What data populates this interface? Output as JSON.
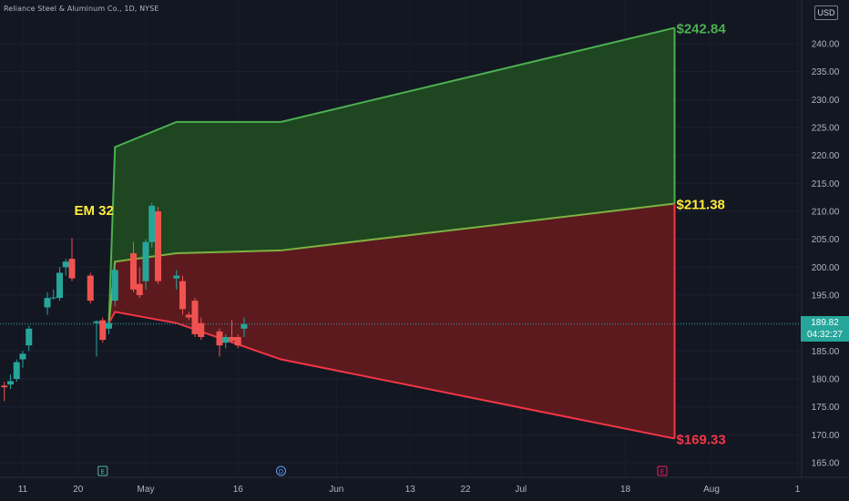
{
  "header": {
    "title": "Reliance Steel & Aluminum Co., 1D, NYSE"
  },
  "currency_badge": "USD",
  "last_price": {
    "value": "189.82",
    "countdown": "04:32:27"
  },
  "annotation_em": "EM 32",
  "colors": {
    "background": "#131722",
    "up": "#26a69a",
    "down": "#ef5350",
    "upper_band": "#4caf50",
    "mid_band": "#7cb342",
    "lower_band": "#f23645",
    "upper_fill": "#1e4620",
    "lower_fill": "#5c1a1f",
    "mid_label": "#ffeb3b"
  },
  "events": [
    {
      "name": "earnings-marker",
      "letter": "E",
      "date": "2024-04-24"
    },
    {
      "name": "dividend-marker",
      "letter": "D",
      "date": "2024-05-23"
    },
    {
      "name": "earnings-marker-future",
      "letter": "E",
      "date": "2024-07-24"
    }
  ],
  "chart_data": {
    "type": "candlestick",
    "ylim": [
      162,
      245
    ],
    "y_ticks": [
      165,
      170,
      175,
      180,
      185,
      190,
      195,
      200,
      205,
      210,
      215,
      220,
      225,
      230,
      235,
      240
    ],
    "x_ticks": [
      {
        "label": "11",
        "date": "2024-04-11"
      },
      {
        "label": "20",
        "date": "2024-04-20"
      },
      {
        "label": "May",
        "date": "2024-05-01"
      },
      {
        "label": "16",
        "date": "2024-05-16"
      },
      {
        "label": "Jun",
        "date": "2024-06-01"
      },
      {
        "label": "13",
        "date": "2024-06-13"
      },
      {
        "label": "22",
        "date": "2024-06-22"
      },
      {
        "label": "Jul",
        "date": "2024-07-01"
      },
      {
        "label": "18",
        "date": "2024-07-18"
      },
      {
        "label": "Aug",
        "date": "2024-08-01"
      },
      {
        "label": "1",
        "date": "2024-08-15"
      }
    ],
    "candles": [
      {
        "date": "2024-04-08",
        "o": 178.8,
        "h": 179.5,
        "l": 176.0,
        "c": 178.5
      },
      {
        "date": "2024-04-09",
        "o": 179.0,
        "h": 180.8,
        "l": 178.2,
        "c": 179.6
      },
      {
        "date": "2024-04-10",
        "o": 180.0,
        "h": 183.5,
        "l": 179.5,
        "c": 183.0
      },
      {
        "date": "2024-04-11",
        "o": 183.5,
        "h": 185.0,
        "l": 182.0,
        "c": 184.5
      },
      {
        "date": "2024-04-12",
        "o": 186.0,
        "h": 189.5,
        "l": 185.0,
        "c": 189.0
      },
      {
        "date": "2024-04-15",
        "o": 192.8,
        "h": 195.5,
        "l": 191.5,
        "c": 194.5
      },
      {
        "date": "2024-04-16",
        "o": 194.5,
        "h": 196.0,
        "l": 194.2,
        "c": 194.6
      },
      {
        "date": "2024-04-17",
        "o": 194.5,
        "h": 200.0,
        "l": 194.0,
        "c": 199.0
      },
      {
        "date": "2024-04-18",
        "o": 200.0,
        "h": 201.5,
        "l": 198.5,
        "c": 201.0
      },
      {
        "date": "2024-04-19",
        "o": 201.5,
        "h": 205.2,
        "l": 197.5,
        "c": 198.0
      },
      {
        "date": "2024-04-22",
        "o": 198.5,
        "h": 199.0,
        "l": 193.5,
        "c": 194.0
      },
      {
        "date": "2024-04-23",
        "o": 190.0,
        "h": 190.5,
        "l": 184.0,
        "c": 190.3
      },
      {
        "date": "2024-04-24",
        "o": 190.5,
        "h": 191.0,
        "l": 186.5,
        "c": 187.0
      },
      {
        "date": "2024-04-25",
        "o": 189.0,
        "h": 190.5,
        "l": 188.0,
        "c": 190.0
      },
      {
        "date": "2024-04-26",
        "o": 194.0,
        "h": 200.5,
        "l": 193.0,
        "c": 199.5
      },
      {
        "date": "2024-04-29",
        "o": 202.5,
        "h": 204.5,
        "l": 195.5,
        "c": 196.0
      },
      {
        "date": "2024-04-30",
        "o": 197.0,
        "h": 200.0,
        "l": 194.5,
        "c": 195.0
      },
      {
        "date": "2024-05-01",
        "o": 197.5,
        "h": 205.0,
        "l": 196.0,
        "c": 204.5
      },
      {
        "date": "2024-05-02",
        "o": 204.5,
        "h": 211.5,
        "l": 203.5,
        "c": 211.0
      },
      {
        "date": "2024-05-03",
        "o": 210.0,
        "h": 210.8,
        "l": 197.0,
        "c": 197.5
      },
      {
        "date": "2024-05-06",
        "o": 198.0,
        "h": 199.5,
        "l": 196.0,
        "c": 198.5
      },
      {
        "date": "2024-05-07",
        "o": 197.5,
        "h": 198.5,
        "l": 191.5,
        "c": 192.5
      },
      {
        "date": "2024-05-08",
        "o": 191.5,
        "h": 192.0,
        "l": 190.5,
        "c": 191.0
      },
      {
        "date": "2024-05-09",
        "o": 194.0,
        "h": 194.5,
        "l": 187.5,
        "c": 188.0
      },
      {
        "date": "2024-05-10",
        "o": 190.0,
        "h": 191.0,
        "l": 187.0,
        "c": 187.5
      },
      {
        "date": "2024-05-13",
        "o": 188.5,
        "h": 189.0,
        "l": 184.0,
        "c": 186.0
      },
      {
        "date": "2024-05-14",
        "o": 186.5,
        "h": 188.0,
        "l": 185.5,
        "c": 187.5
      },
      {
        "date": "2024-05-15",
        "o": 187.5,
        "h": 190.5,
        "l": 186.5,
        "c": 186.8
      },
      {
        "date": "2024-05-16",
        "o": 187.5,
        "h": 188.0,
        "l": 185.5,
        "c": 186.0
      },
      {
        "date": "2024-05-17",
        "o": 189.0,
        "h": 191.0,
        "l": 187.5,
        "c": 189.82
      }
    ],
    "bands": {
      "upper": [
        {
          "date": "2024-04-25",
          "v": 190.0
        },
        {
          "date": "2024-04-26",
          "v": 221.5
        },
        {
          "date": "2024-05-06",
          "v": 226.0
        },
        {
          "date": "2024-05-23",
          "v": 226.0
        },
        {
          "date": "2024-07-26",
          "v": 242.84
        }
      ],
      "mid": [
        {
          "date": "2024-04-25",
          "v": 190.0
        },
        {
          "date": "2024-04-26",
          "v": 201.0
        },
        {
          "date": "2024-05-06",
          "v": 202.5
        },
        {
          "date": "2024-05-23",
          "v": 203.0
        },
        {
          "date": "2024-07-26",
          "v": 211.38
        }
      ],
      "lower": [
        {
          "date": "2024-04-25",
          "v": 190.0
        },
        {
          "date": "2024-04-26",
          "v": 192.0
        },
        {
          "date": "2024-05-06",
          "v": 190.0
        },
        {
          "date": "2024-05-23",
          "v": 183.5
        },
        {
          "date": "2024-07-26",
          "v": 169.33
        }
      ],
      "labels": {
        "upper": "$242.84",
        "mid": "$211.38",
        "lower": "$169.33"
      }
    },
    "last_price_line": 189.82
  }
}
